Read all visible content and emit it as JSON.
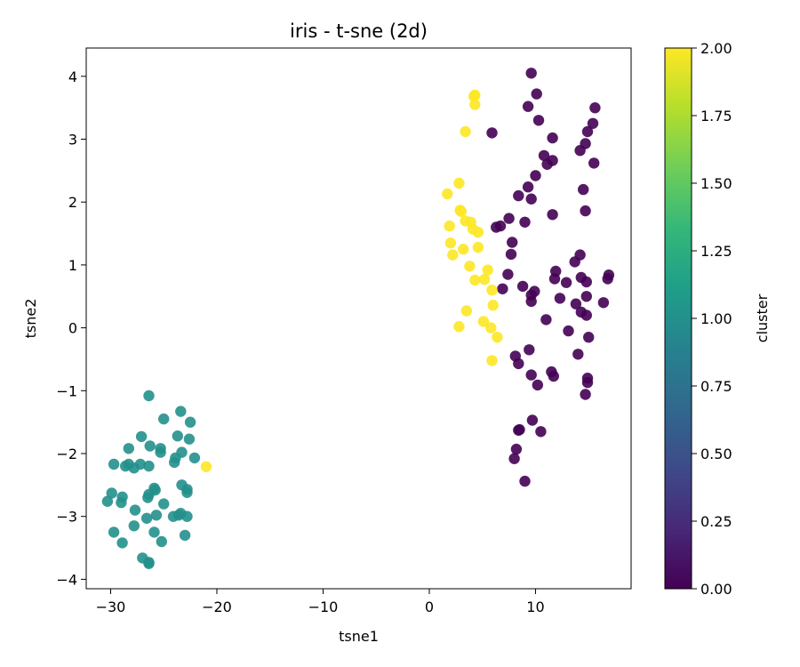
{
  "chart_data": {
    "type": "scatter",
    "title": "iris - t-sne (2d)",
    "xlabel": "tsne1",
    "ylabel": "tsne2",
    "xlim": [
      -32.3,
      19.0
    ],
    "ylim": [
      -4.15,
      4.45
    ],
    "xticks": [
      -30,
      -20,
      -10,
      0,
      10
    ],
    "xtick_labels": [
      "−30",
      "−20",
      "−10",
      "0",
      "10"
    ],
    "yticks": [
      -4,
      -3,
      -2,
      -1,
      0,
      1,
      2,
      3,
      4
    ],
    "ytick_labels": [
      "−4",
      "−3",
      "−2",
      "−1",
      "0",
      "1",
      "2",
      "3",
      "4"
    ],
    "grid": false,
    "marker_alpha": 0.9,
    "colorbar": {
      "label": "cluster",
      "range": [
        0.0,
        2.0
      ],
      "ticks": [
        0.0,
        0.25,
        0.5,
        0.75,
        1.0,
        1.25,
        1.5,
        1.75,
        2.0
      ],
      "tick_labels": [
        "0.00",
        "0.25",
        "0.50",
        "0.75",
        "1.00",
        "1.25",
        "1.50",
        "1.75",
        "2.00"
      ],
      "colormap": "viridis",
      "colormap_stops": [
        "#440154",
        "#482878",
        "#3e4a89",
        "#31688e",
        "#26828e",
        "#1f9e89",
        "#35b779",
        "#6ece58",
        "#b5de2b",
        "#fde725"
      ]
    },
    "points": [
      [
        9.6,
        4.05,
        0
      ],
      [
        10.1,
        3.72,
        0
      ],
      [
        9.3,
        3.52,
        0
      ],
      [
        15.6,
        3.5,
        0
      ],
      [
        10.3,
        3.3,
        0
      ],
      [
        15.4,
        3.25,
        0
      ],
      [
        14.9,
        3.12,
        0
      ],
      [
        5.9,
        3.1,
        0
      ],
      [
        11.6,
        3.02,
        0
      ],
      [
        14.7,
        2.93,
        0
      ],
      [
        14.2,
        2.82,
        0
      ],
      [
        10.8,
        2.74,
        0
      ],
      [
        11.6,
        2.66,
        0
      ],
      [
        15.5,
        2.62,
        0
      ],
      [
        11.1,
        2.6,
        0
      ],
      [
        10.0,
        2.42,
        0
      ],
      [
        9.3,
        2.24,
        0
      ],
      [
        14.5,
        2.2,
        0
      ],
      [
        8.4,
        2.1,
        0
      ],
      [
        9.6,
        2.05,
        0
      ],
      [
        14.7,
        1.86,
        0
      ],
      [
        11.6,
        1.8,
        0
      ],
      [
        7.5,
        1.74,
        0
      ],
      [
        9.0,
        1.68,
        0
      ],
      [
        6.7,
        1.62,
        0
      ],
      [
        6.3,
        1.6,
        0
      ],
      [
        7.8,
        1.36,
        0
      ],
      [
        7.7,
        1.17,
        0
      ],
      [
        14.2,
        1.16,
        0
      ],
      [
        13.7,
        1.05,
        0
      ],
      [
        11.9,
        0.9,
        0
      ],
      [
        7.4,
        0.85,
        0
      ],
      [
        16.9,
        0.84,
        0
      ],
      [
        14.3,
        0.8,
        0
      ],
      [
        16.8,
        0.78,
        0
      ],
      [
        11.8,
        0.78,
        0
      ],
      [
        14.8,
        0.73,
        0
      ],
      [
        12.9,
        0.72,
        0
      ],
      [
        8.8,
        0.66,
        0
      ],
      [
        6.9,
        0.62,
        0
      ],
      [
        9.9,
        0.58,
        0
      ],
      [
        9.6,
        0.52,
        0
      ],
      [
        14.8,
        0.5,
        0
      ],
      [
        12.3,
        0.47,
        0
      ],
      [
        9.6,
        0.42,
        0
      ],
      [
        16.4,
        0.4,
        0
      ],
      [
        13.8,
        0.38,
        0
      ],
      [
        14.3,
        0.25,
        0
      ],
      [
        14.8,
        0.2,
        0
      ],
      [
        11.0,
        0.13,
        0
      ],
      [
        13.1,
        -0.05,
        0
      ],
      [
        15.0,
        -0.15,
        0
      ],
      [
        9.4,
        -0.35,
        0
      ],
      [
        14.0,
        -0.42,
        0
      ],
      [
        8.1,
        -0.45,
        0
      ],
      [
        8.4,
        -0.57,
        0
      ],
      [
        11.5,
        -0.7,
        0
      ],
      [
        9.6,
        -0.75,
        0
      ],
      [
        11.7,
        -0.77,
        0
      ],
      [
        14.9,
        -0.8,
        0
      ],
      [
        14.9,
        -0.87,
        0
      ],
      [
        10.2,
        -0.91,
        0
      ],
      [
        14.7,
        -1.06,
        0
      ],
      [
        9.7,
        -1.47,
        0
      ],
      [
        8.5,
        -1.62,
        0
      ],
      [
        8.4,
        -1.63,
        0
      ],
      [
        10.5,
        -1.65,
        0
      ],
      [
        8.2,
        -1.93,
        0
      ],
      [
        8.0,
        -2.08,
        0
      ],
      [
        9.0,
        -2.44,
        0
      ],
      [
        -26.4,
        -1.08,
        1
      ],
      [
        -23.4,
        -1.33,
        1
      ],
      [
        -25.0,
        -1.45,
        1
      ],
      [
        -22.5,
        -1.5,
        1
      ],
      [
        -27.1,
        -1.73,
        1
      ],
      [
        -23.7,
        -1.72,
        1
      ],
      [
        -22.6,
        -1.77,
        1
      ],
      [
        -26.3,
        -1.88,
        1
      ],
      [
        -28.3,
        -1.92,
        1
      ],
      [
        -25.3,
        -1.92,
        1
      ],
      [
        -25.3,
        -1.98,
        1
      ],
      [
        -23.3,
        -1.98,
        1
      ],
      [
        -22.1,
        -2.07,
        1
      ],
      [
        -23.9,
        -2.07,
        1
      ],
      [
        -24.0,
        -2.14,
        1
      ],
      [
        -29.7,
        -2.17,
        1
      ],
      [
        -28.3,
        -2.17,
        1
      ],
      [
        -28.6,
        -2.2,
        1
      ],
      [
        -27.2,
        -2.17,
        1
      ],
      [
        -26.4,
        -2.2,
        1
      ],
      [
        -27.8,
        -2.23,
        1
      ],
      [
        -23.3,
        -2.5,
        1
      ],
      [
        -22.8,
        -2.57,
        1
      ],
      [
        -25.8,
        -2.58,
        1
      ],
      [
        -25.9,
        -2.55,
        1
      ],
      [
        -22.8,
        -2.62,
        1
      ],
      [
        -29.9,
        -2.63,
        1
      ],
      [
        -26.4,
        -2.65,
        1
      ],
      [
        -28.9,
        -2.69,
        1
      ],
      [
        -26.5,
        -2.7,
        1
      ],
      [
        -30.3,
        -2.76,
        1
      ],
      [
        -29.0,
        -2.78,
        1
      ],
      [
        -25.0,
        -2.8,
        1
      ],
      [
        -27.7,
        -2.9,
        1
      ],
      [
        -23.4,
        -2.95,
        1
      ],
      [
        -25.7,
        -2.98,
        1
      ],
      [
        -23.6,
        -2.98,
        1
      ],
      [
        -24.1,
        -3.0,
        1
      ],
      [
        -22.8,
        -3.0,
        1
      ],
      [
        -26.6,
        -3.03,
        1
      ],
      [
        -27.8,
        -3.15,
        1
      ],
      [
        -29.7,
        -3.25,
        1
      ],
      [
        -25.9,
        -3.25,
        1
      ],
      [
        -23.0,
        -3.3,
        1
      ],
      [
        -25.2,
        -3.4,
        1
      ],
      [
        -28.9,
        -3.42,
        1
      ],
      [
        -27.0,
        -3.66,
        1
      ],
      [
        -26.4,
        -3.73,
        1
      ],
      [
        -26.4,
        -3.75,
        1
      ],
      [
        4.3,
        3.7,
        2
      ],
      [
        4.2,
        3.68,
        2
      ],
      [
        4.3,
        3.55,
        2
      ],
      [
        3.4,
        3.12,
        2
      ],
      [
        2.8,
        2.3,
        2
      ],
      [
        1.7,
        2.13,
        2
      ],
      [
        2.9,
        1.87,
        2
      ],
      [
        3.0,
        1.85,
        2
      ],
      [
        3.4,
        1.7,
        2
      ],
      [
        3.9,
        1.68,
        2
      ],
      [
        1.9,
        1.62,
        2
      ],
      [
        4.1,
        1.57,
        2
      ],
      [
        4.6,
        1.52,
        2
      ],
      [
        2.0,
        1.35,
        2
      ],
      [
        4.6,
        1.28,
        2
      ],
      [
        3.2,
        1.25,
        2
      ],
      [
        2.2,
        1.16,
        2
      ],
      [
        3.8,
        0.98,
        2
      ],
      [
        5.5,
        0.92,
        2
      ],
      [
        4.3,
        0.76,
        2
      ],
      [
        5.2,
        0.77,
        2
      ],
      [
        5.9,
        0.6,
        2
      ],
      [
        6.0,
        0.36,
        2
      ],
      [
        3.5,
        0.27,
        2
      ],
      [
        5.1,
        0.1,
        2
      ],
      [
        2.8,
        0.02,
        2
      ],
      [
        5.8,
        0.0,
        2
      ],
      [
        6.4,
        -0.15,
        2
      ],
      [
        5.9,
        -0.52,
        2
      ],
      [
        -21.0,
        -2.21,
        2
      ]
    ]
  }
}
